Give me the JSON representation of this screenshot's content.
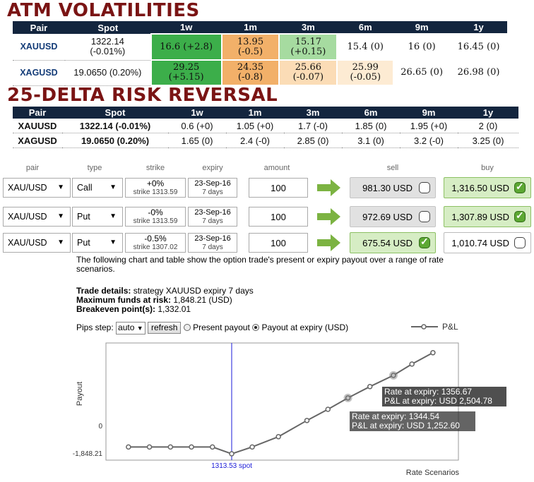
{
  "atm": {
    "title": "ATM VOLATILITIES",
    "headers": [
      "Pair",
      "Spot",
      "1w",
      "1m",
      "3m",
      "6m",
      "9m",
      "1y"
    ],
    "rows": [
      {
        "pair": "XAUUSD",
        "spot_l1": "1322.14",
        "spot_l2": "(-0.01%)",
        "cells": [
          {
            "l1": "16.6 (+2.8)",
            "l2": "",
            "bg": "#3cae4a"
          },
          {
            "l1": "13.95",
            "l2": "(-0.5)",
            "bg": "#f2b069"
          },
          {
            "l1": "15.17",
            "l2": "(+0.15)",
            "bg": "#a6dba0"
          },
          {
            "l1": "15.4 (0)",
            "l2": "",
            "bg": "#ffffff"
          },
          {
            "l1": "16 (0)",
            "l2": "",
            "bg": "#ffffff"
          },
          {
            "l1": "16.45 (0)",
            "l2": "",
            "bg": "#ffffff"
          }
        ]
      },
      {
        "pair": "XAGUSD",
        "spot_l1": "19.0650 (0.20%)",
        "spot_l2": "",
        "cells": [
          {
            "l1": "29.25",
            "l2": "(+5.15)",
            "bg": "#3cae4a"
          },
          {
            "l1": "24.35",
            "l2": "(-0.8)",
            "bg": "#f2b069"
          },
          {
            "l1": "25.66",
            "l2": "(-0.07)",
            "bg": "#fbdcb6"
          },
          {
            "l1": "25.99",
            "l2": "(-0.05)",
            "bg": "#fdebd3"
          },
          {
            "l1": "26.65 (0)",
            "l2": "",
            "bg": "#ffffff"
          },
          {
            "l1": "26.98 (0)",
            "l2": "",
            "bg": "#ffffff"
          }
        ]
      }
    ]
  },
  "rr": {
    "title": "25-DELTA RISK REVERSAL",
    "headers": [
      "Pair",
      "Spot",
      "1w",
      "1m",
      "3m",
      "6m",
      "9m",
      "1y"
    ],
    "rows": [
      {
        "pair": "XAUUSD",
        "spot": "1322.14 (-0.01%)",
        "cells": [
          "0.6 (+0)",
          "1.05 (+0)",
          "1.7 (-0)",
          "1.85 (0)",
          "1.95 (+0)",
          "2 (0)"
        ]
      },
      {
        "pair": "XAGUSD",
        "spot": "19.0650 (0.20%)",
        "cells": [
          "1.65 (0)",
          "2.4 (-0)",
          "2.85 (0)",
          "3.1 (0)",
          "3.2 (-0)",
          "3.25 (0)"
        ]
      }
    ]
  },
  "trade_headers": {
    "pair": "pair",
    "type": "type",
    "strike": "strike",
    "expiry": "expiry",
    "amount": "amount",
    "sell": "sell",
    "buy": "buy"
  },
  "trades": [
    {
      "pair": "XAU/USD",
      "type": "Call",
      "strike_pct": "+0%",
      "strike_sub": "strike 1313.59",
      "expiry_date": "23-Sep-16",
      "expiry_days": "7 days",
      "amount": "100",
      "sell": "981.30 USD",
      "sell_checked": false,
      "buy": "1,316.50 USD",
      "buy_checked": true
    },
    {
      "pair": "XAU/USD",
      "type": "Put",
      "strike_pct": "-0%",
      "strike_sub": "strike 1313.59",
      "expiry_date": "23-Sep-16",
      "expiry_days": "7 days",
      "amount": "100",
      "sell": "972.69 USD",
      "sell_checked": false,
      "buy": "1,307.89 USD",
      "buy_checked": true
    },
    {
      "pair": "XAU/USD",
      "type": "Put",
      "strike_pct": "-0.5%",
      "strike_sub": "strike 1307.02",
      "expiry_date": "23-Sep-16",
      "expiry_days": "7 days",
      "amount": "100",
      "sell": "675.54 USD",
      "sell_checked": true,
      "buy": "1,010.74 USD",
      "buy_checked": false
    }
  ],
  "description": "The following chart and table show the option trade's present or expiry payout over a range of rate scenarios.",
  "details": {
    "trade_label": "Trade details:",
    "trade_value": " strategy XAUUSD expiry 7 days",
    "funds_label": "Maximum funds at risk:",
    "funds_value": " 1,848.21 (USD)",
    "breakeven_label": "Breakeven point(s):",
    "breakeven_value": " 1,332.01"
  },
  "controls": {
    "pips_label": "Pips step:",
    "pips_value": "auto",
    "refresh": "refresh",
    "present_payout": "Present payout",
    "expiry_payout": "Payout at expiry (USD)",
    "selected": "expiry"
  },
  "colors": {
    "header_bg": "#13253e",
    "title": "#7a1414",
    "line": "#666666",
    "spot_line": "#1a1ad8"
  },
  "chart_data": {
    "type": "line",
    "legend": "P&L",
    "ylabel": "Payout",
    "xlabel": "Rate Scenarios",
    "y_ticks": [
      "0",
      "-1,848.21"
    ],
    "spot_label": "1313.53 spot",
    "series": [
      {
        "name": "P&L",
        "points": [
          {
            "x": 1286,
            "y": -1470
          },
          {
            "x": 1291.6,
            "y": -1470
          },
          {
            "x": 1297.2,
            "y": -1470
          },
          {
            "x": 1302.8,
            "y": -1470
          },
          {
            "x": 1308.4,
            "y": -1470
          },
          {
            "x": 1313.53,
            "y": -1848.21
          },
          {
            "x": 1319,
            "y": -1470
          },
          {
            "x": 1326,
            "y": -900
          },
          {
            "x": 1333.6,
            "y": 0
          },
          {
            "x": 1339.2,
            "y": 620
          },
          {
            "x": 1344.54,
            "y": 1252.6
          },
          {
            "x": 1350.4,
            "y": 1880
          },
          {
            "x": 1356.67,
            "y": 2504.78
          },
          {
            "x": 1361.6,
            "y": 3130
          },
          {
            "x": 1367.2,
            "y": 3760
          }
        ]
      }
    ],
    "tooltips": [
      {
        "rate_label": "Rate at expiry: 1356.67",
        "pl_label": "P&L at expiry: USD 2,504.78"
      },
      {
        "rate_label": "Rate at expiry: 1344.54",
        "pl_label": "P&L at expiry: USD 1,252.60"
      }
    ]
  }
}
